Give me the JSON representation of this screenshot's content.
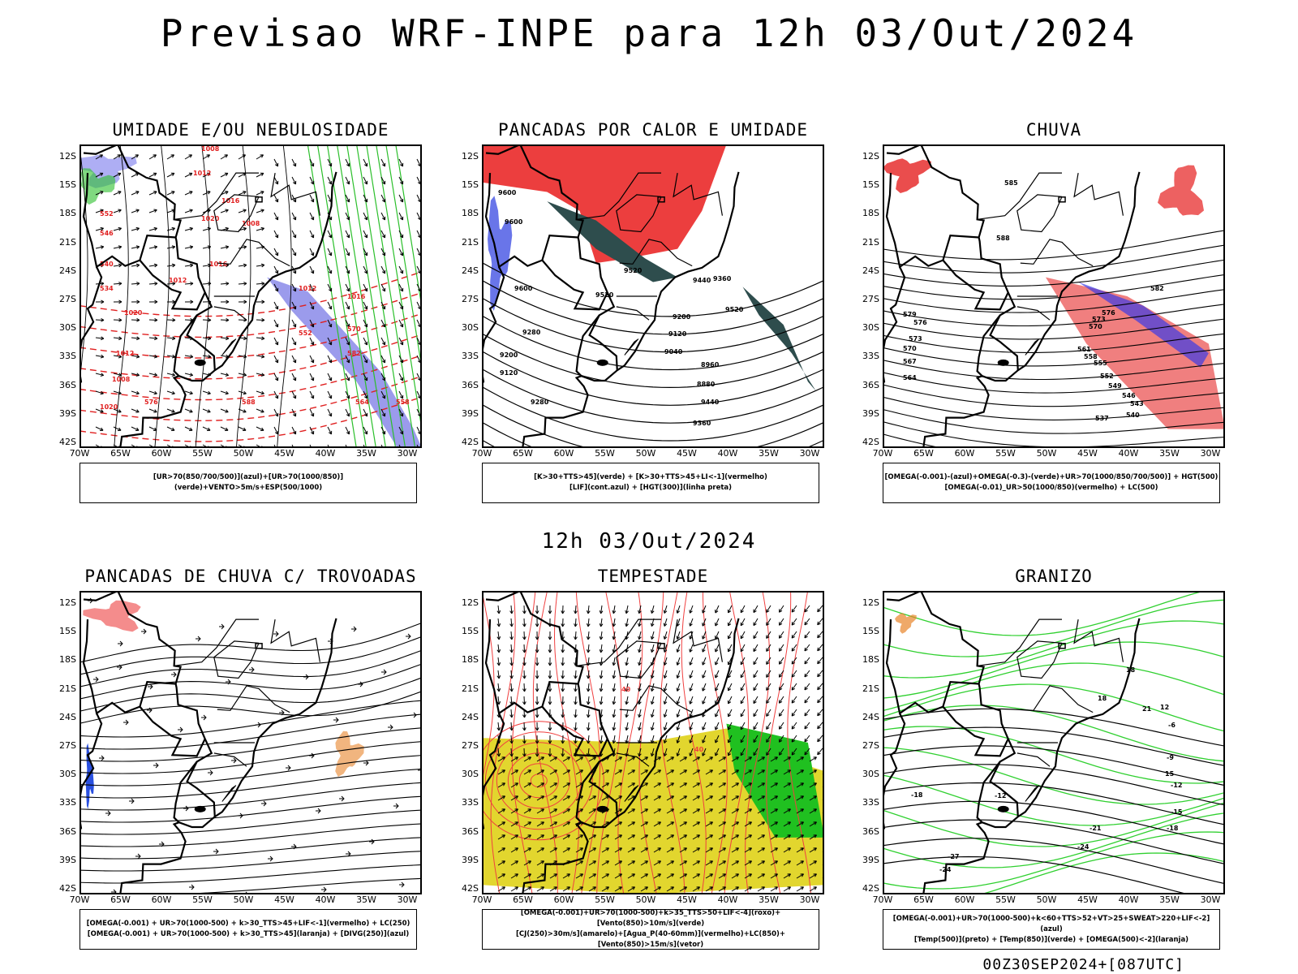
{
  "page": {
    "title": "Previsao WRF-INPE  para 12h 03/Out/2024",
    "subtitle": "12h 03/Out/2024",
    "footer": "00Z30SEP2024+[087UTC]"
  },
  "axes": {
    "lat_labels": [
      "12S",
      "15S",
      "18S",
      "21S",
      "24S",
      "27S",
      "30S",
      "33S",
      "36S",
      "39S",
      "42S"
    ],
    "lon_labels": [
      "70W",
      "65W",
      "60W",
      "55W",
      "50W",
      "45W",
      "40W",
      "35W",
      "30W"
    ]
  },
  "panels": [
    {
      "id": "umidade",
      "title": "UMIDADE E/OU NEBULOSIDADE",
      "legend": [
        "[UR>70(850/700/500)](azul)+[UR>70(1000/850)](verde)+VENTO>5m/s+ESP(500/1000)"
      ],
      "contour_labels": [
        "1008",
        "1012",
        "1016",
        "1020",
        "1008",
        "1012",
        "1016",
        "1012",
        "1020",
        "1016",
        "1012",
        "1008",
        "1020",
        "576",
        "570",
        "564",
        "558",
        "552",
        "546",
        "540",
        "534",
        "588",
        "582",
        "552"
      ]
    },
    {
      "id": "pancadas_calor",
      "title": "PANCADAS POR CALOR E UMIDADE",
      "legend": [
        "[K>30+TTS>45](verde) + [K>30+TTS>45+LI<-1](vermelho)",
        "[LIF](cont.azul) + [HGT(300)](linha preta)"
      ],
      "contour_labels": [
        "9600",
        "9600",
        "9520",
        "9600",
        "9520",
        "9440",
        "9360",
        "9280",
        "9200",
        "9120",
        "9040",
        "8960",
        "8880",
        "9440",
        "9360",
        "9280",
        "9200",
        "9120",
        "9520"
      ]
    },
    {
      "id": "chuva",
      "title": "CHUVA",
      "legend": [
        "[OMEGA(-0.001)-(azul)+OMEGA(-0.3)-(verde)+UR>70(1000/850/700/500)] + HGT(500)",
        "[OMEGA(-0.01)_UR>50(1000/850)(vermelho) + LC(500)"
      ],
      "contour_labels": [
        "585",
        "588",
        "582",
        "579",
        "576",
        "573",
        "570",
        "567",
        "564",
        "561",
        "558",
        "555",
        "552",
        "549",
        "546",
        "543",
        "540",
        "537",
        "573",
        "570",
        "576"
      ]
    },
    {
      "id": "pancadas_trovoadas",
      "title": "PANCADAS DE CHUVA C/ TROVOADAS",
      "legend": [
        "[OMEGA(-0.001) + UR>70(1000-500) + k>30_TTS>45+LIF<-1](vermelho) + LC(250)",
        "[OMEGA(-0.001) + UR>70(1000-500) + k>30_TTS>45](laranja) + [DIVG(250)](azul)"
      ],
      "contour_labels": []
    },
    {
      "id": "tempestade",
      "title": "TEMPESTADE",
      "legend": [
        "[OMEGA(-0.001)+UR>70(1000-500)+k>35_TTS>50+LIF<-4](roxo)+[Vento(850)>10m/s](verde)",
        "[CJ(250)>30m/s](amarelo)+[Agua_P(40-60mm)](vermelho)+LC(850)+[Vento(850)>15m/s](vetor)"
      ],
      "contour_labels": [
        "40",
        "40"
      ]
    },
    {
      "id": "granizo",
      "title": "GRANIZO",
      "legend": [
        "[OMEGA(-0.001)+UR>70(1000-500)+k<60+TTS>52+VT>25+SWEAT>220+LIF<-2](azul)",
        "[Temp(500)](preto) + [Temp(850)](verde) + [OMEGA(500)<-2](laranja)"
      ],
      "contour_labels": [
        "-6",
        "-9",
        "-12",
        "-15",
        "-18",
        "-21",
        "-24",
        "-27",
        "-24",
        "-18",
        "-12",
        "12",
        "15",
        "18",
        "21",
        "18"
      ]
    }
  ]
}
